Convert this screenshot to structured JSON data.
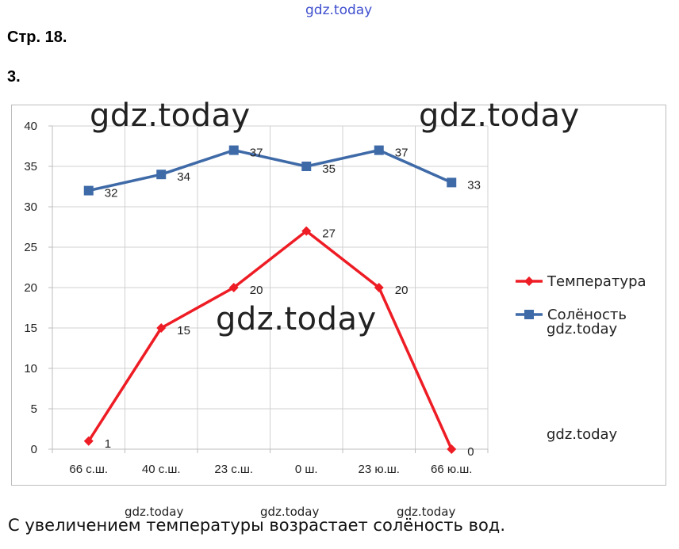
{
  "header": {
    "watermark": "gdz.today",
    "page_ref": "Стр. 18.",
    "task_number": "3."
  },
  "watermarks": {
    "big": "gdz.today",
    "small": "gdz.today"
  },
  "chart_data": {
    "type": "line",
    "categories": [
      "66 с.ш.",
      "40 с.ш.",
      "23 с.ш.",
      "0 ш.",
      "23 ю.ш.",
      "66 ю.ш."
    ],
    "ylim": [
      0,
      40
    ],
    "yticks": [
      0,
      5,
      10,
      15,
      20,
      25,
      30,
      35,
      40
    ],
    "grid": true,
    "legend_position": "right",
    "series": [
      {
        "name": "Температура",
        "values": [
          1,
          15,
          20,
          27,
          20,
          0
        ],
        "color": "#ee1c24",
        "marker": "diamond"
      },
      {
        "name": "Солёность",
        "values": [
          32,
          34,
          37,
          35,
          37,
          33
        ],
        "color": "#3f6aa8",
        "marker": "square"
      }
    ]
  },
  "conclusion": "С увеличением температуры возрастает солёность вод."
}
